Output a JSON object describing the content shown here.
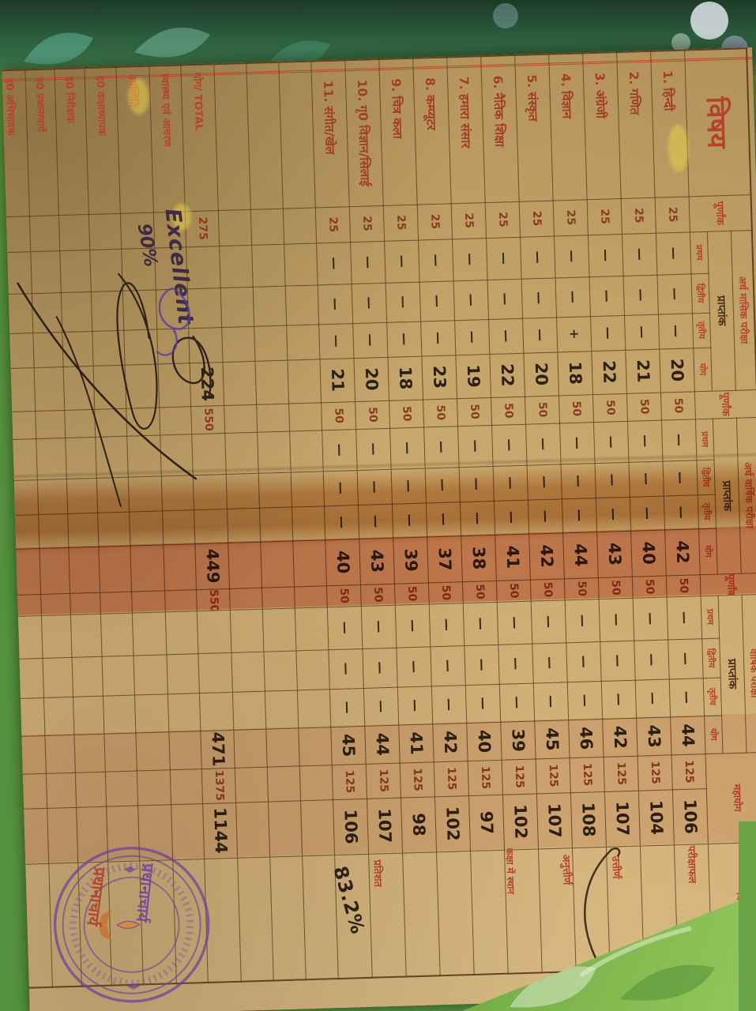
{
  "doc": {
    "subject_header": "विषय",
    "purnank": "पूर्णांक",
    "praptank": "प्राप्तांक",
    "sections": [
      "अर्ध मासिक परीक्षा",
      "अर्ध वार्षिक परीक्षा",
      "वार्षिक परीक्षा"
    ],
    "sub_cols": [
      "प्रथम",
      "द्वितीय",
      "तृतीय",
      "योग"
    ],
    "mahayog": "महायोग",
    "vivaran": "विवरण",
    "fm25": "25",
    "fm50": "50",
    "fm125": "125",
    "dash": "—",
    "plus": "+",
    "subjects": [
      {
        "name": "1. हिन्दी",
        "monthly": "20",
        "half_yearly": "42",
        "annual": "44",
        "total": "106"
      },
      {
        "name": "2. गणित",
        "monthly": "21",
        "half_yearly": "40",
        "annual": "43",
        "total": "104"
      },
      {
        "name": "3. अंग्रेजी",
        "monthly": "22",
        "half_yearly": "43",
        "annual": "42",
        "total": "107"
      },
      {
        "name": "4. विज्ञान",
        "monthly": "18",
        "half_yearly": "44",
        "annual": "46",
        "total": "108"
      },
      {
        "name": "5. संस्कृत",
        "monthly": "20",
        "half_yearly": "42",
        "annual": "45",
        "total": "107"
      },
      {
        "name": "6. नैतिक शिक्षा",
        "monthly": "22",
        "half_yearly": "41",
        "annual": "39",
        "total": "102"
      },
      {
        "name": "7. हमारा संसार",
        "monthly": "19",
        "half_yearly": "38",
        "annual": "40",
        "total": "97"
      },
      {
        "name": "8. कम्प्यूटर",
        "monthly": "23",
        "half_yearly": "37",
        "annual": "42",
        "total": "102"
      },
      {
        "name": "9. चित्र कला",
        "monthly": "18",
        "half_yearly": "39",
        "annual": "41",
        "total": "98"
      },
      {
        "name": "10. गृ0 विज्ञान/सिलाई",
        "monthly": "20",
        "half_yearly": "43",
        "annual": "44",
        "total": "107"
      },
      {
        "name": "11. संगीत/खेल",
        "monthly": "21",
        "half_yearly": "40",
        "annual": "45",
        "total": "106"
      }
    ],
    "total_row": {
      "label": "योग/ TOTAL",
      "purnank": "275",
      "monthly": "224",
      "fm550a": "550",
      "half_yearly": "449",
      "fm550b": "550",
      "annual": "471",
      "fm1375": "1375",
      "grand_total": "1144"
    },
    "health_row": {
      "label": "स्वास्थ्य एवं आचरण",
      "value": "Excellent"
    },
    "attendance_row": {
      "label": "उपस्थिति",
      "value": "90%"
    },
    "signature_rows": [
      "ह0 कक्षाध्यापक",
      "ह0 निरीक्षक",
      "ह0 प्रधानाचार्य",
      "ह0 अभिभावक"
    ],
    "vivaran_labels": {
      "pariksha_phal": "परीक्षाफल",
      "uttirn": "उत्तीर्ण",
      "anuttirn": "अनुत्तीर्ण",
      "kaksha_sthan": "कक्षा में स्थान",
      "pratishat": "प्रतिशत"
    },
    "percentage": "83.2%",
    "stamp": {
      "designation": "प्रधानाचार्य"
    },
    "colors": {
      "paper": "#cdac72",
      "print_red": "#b5432c",
      "ink": "#2d2113",
      "ink_violet": "#3f2b45",
      "stamp_purple": "#6e3f9d",
      "highlight_red": "#d03a24",
      "stain_orange": "#ab5e14",
      "cloth_green": "#55923e"
    }
  }
}
